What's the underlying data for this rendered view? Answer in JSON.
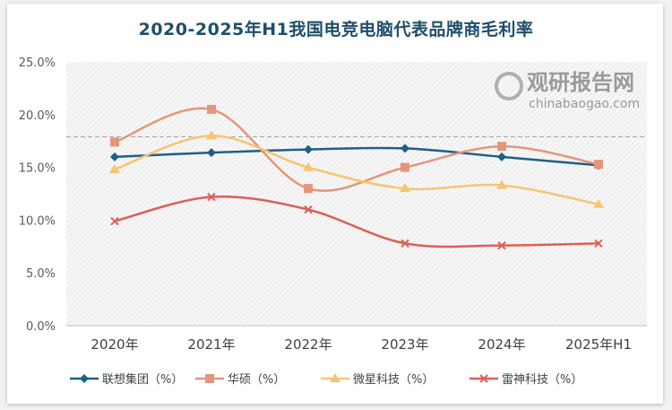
{
  "chart_data": {
    "type": "line",
    "title": "2020-2025年H1我国电竞电脑代表品牌商毛利率",
    "categories": [
      "2020年",
      "2021年",
      "2022年",
      "2023年",
      "2024年",
      "2025年H1"
    ],
    "ylim": [
      0,
      25
    ],
    "yticks": [
      "0.0%",
      "5.0%",
      "10.0%",
      "15.0%",
      "20.0%",
      "25.0%"
    ],
    "grid": false,
    "legend": "bottom",
    "reference_line": 17.9,
    "series": [
      {
        "name": "联想集团（%）",
        "values": [
          16.0,
          16.4,
          16.7,
          16.8,
          16.0,
          15.2
        ],
        "color": "#1f5f86",
        "marker": "diamond"
      },
      {
        "name": "华硕（%）",
        "values": [
          17.4,
          20.5,
          13.0,
          15.0,
          17.0,
          15.3
        ],
        "color": "#e4967a",
        "marker": "square"
      },
      {
        "name": "微星科技（%）",
        "values": [
          14.8,
          18.0,
          15.0,
          13.0,
          13.3,
          11.5
        ],
        "color": "#f7c570",
        "marker": "triangle"
      },
      {
        "name": "雷神科技（%）",
        "values": [
          9.9,
          12.2,
          11.0,
          7.8,
          7.6,
          7.8
        ],
        "color": "#dd6055",
        "marker": "x"
      }
    ]
  },
  "watermark": {
    "brand": "观研报告网",
    "url": "chinabaogao.com"
  }
}
